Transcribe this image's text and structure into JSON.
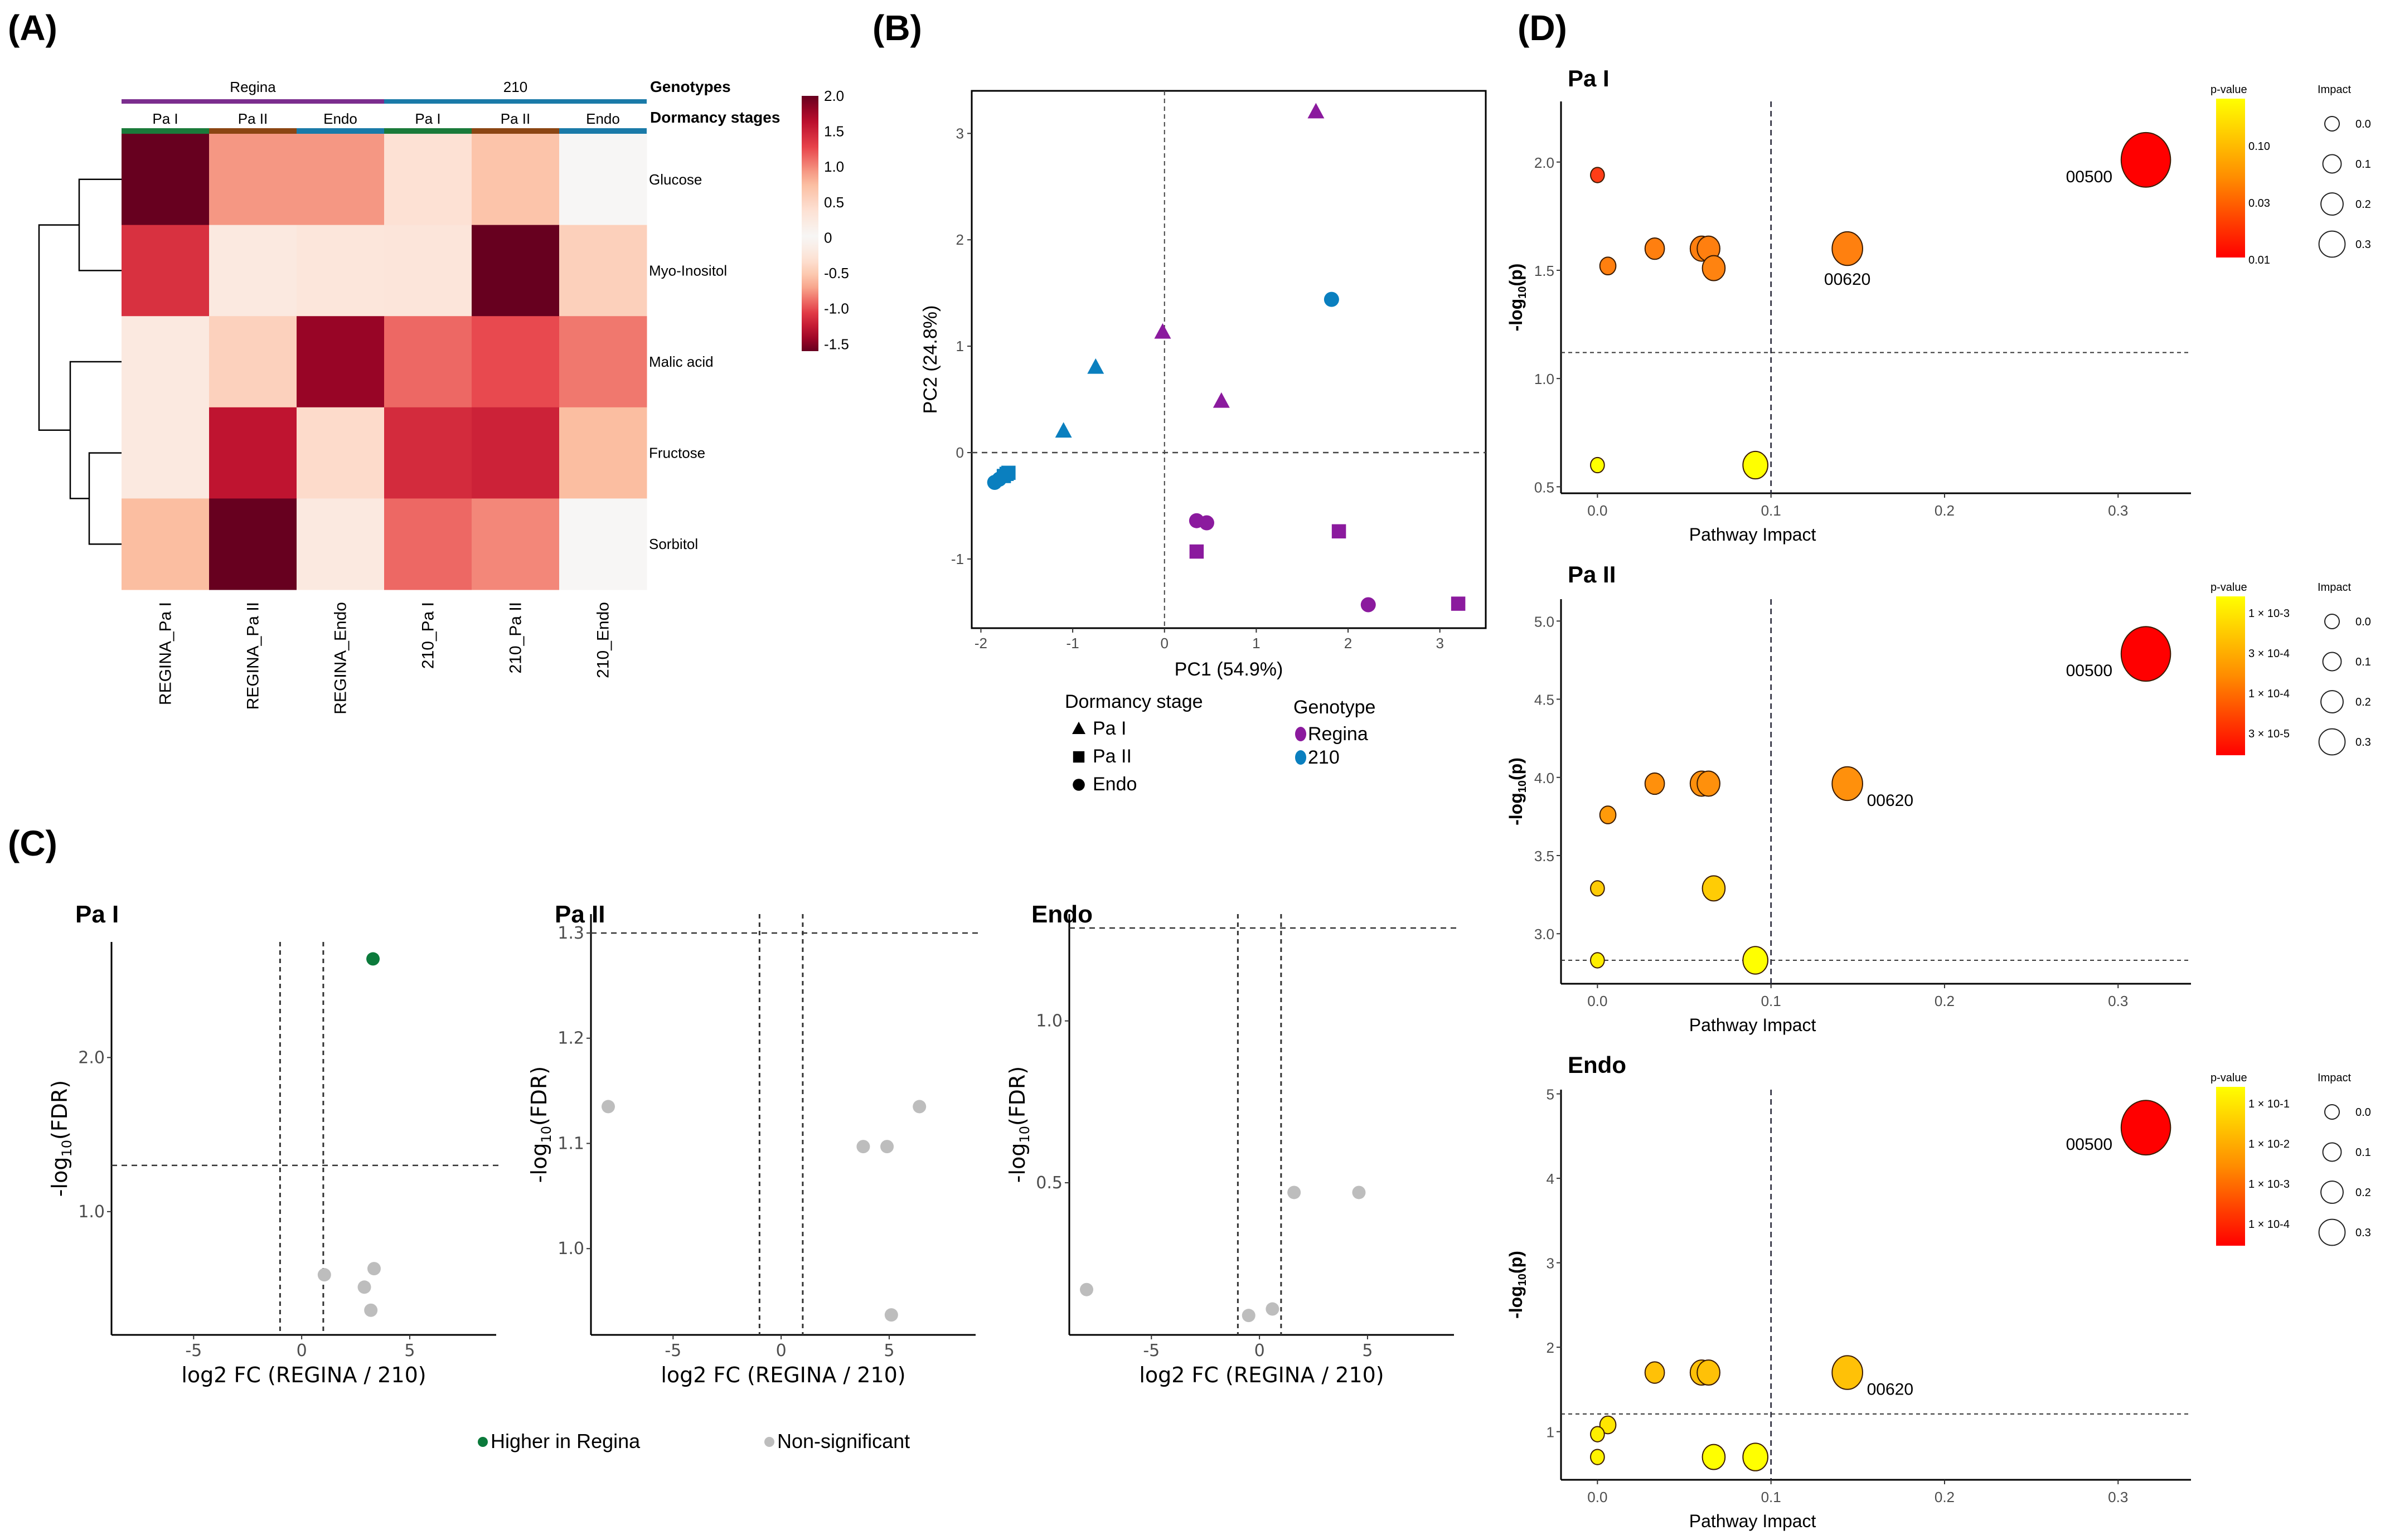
{
  "figure": {
    "panel_labels": [
      "(A)",
      "(B)",
      "(C)",
      "(D)"
    ]
  },
  "chart_data": [
    {
      "id": "A",
      "type": "heatmap",
      "title": "",
      "rows": [
        "Glucose",
        "Myo-Inositol",
        "Malic acid",
        "Fructose",
        "Sorbitol"
      ],
      "columns": [
        "REGINA_Pa I",
        "REGINA_Pa II",
        "REGINA_Endo",
        "210_Pa I",
        "210_Pa II",
        "210_Endo"
      ],
      "values": [
        [
          2.0,
          -0.75,
          -0.75,
          -0.3,
          -0.55,
          0.02
        ],
        [
          1.4,
          0.25,
          0.3,
          -0.25,
          -1.6,
          -0.45
        ],
        [
          -0.2,
          0.55,
          1.8,
          -0.9,
          -1.0,
          -0.85
        ],
        [
          0.25,
          1.6,
          0.45,
          -1.15,
          -1.2,
          -0.6
        ],
        [
          -0.6,
          2.0,
          -0.2,
          -0.9,
          -0.8,
          0.02
        ]
      ],
      "annotations": {
        "genotypes_label": "Genotypes",
        "dormancy_label": "Dormancy stages",
        "genotype_groups": [
          {
            "name": "Regina",
            "span": 3,
            "color": "#7b2d8e"
          },
          {
            "name": "210",
            "span": 3,
            "color": "#1a7aa8"
          }
        ],
        "stages": [
          {
            "name": "Pa I",
            "color": "#1a7a3a"
          },
          {
            "name": "Pa II",
            "color": "#8b4513"
          },
          {
            "name": "Endo",
            "color": "#1a7aa8"
          },
          {
            "name": "Pa I",
            "color": "#1a7a3a"
          },
          {
            "name": "Pa II",
            "color": "#8b4513"
          },
          {
            "name": "Endo",
            "color": "#1a7aa8"
          }
        ]
      },
      "colorbar": {
        "ticks": [
          "2.0",
          "1.5",
          "1.0",
          "0.5",
          "0",
          "-0.5",
          "-1.0",
          "-1.5"
        ],
        "range": [
          -1.6,
          2.0
        ],
        "low_color": "#08306b",
        "mid_color": "#f7f7f7",
        "high_color": "#67001f"
      }
    },
    {
      "id": "B",
      "type": "scatter",
      "title": "",
      "xlabel": "PC1 (54.9%)",
      "ylabel": "PC2 (24.8%)",
      "xlim": [
        -2.1,
        3.5
      ],
      "ylim": [
        -1.65,
        3.4
      ],
      "xticks": [
        -2,
        -1,
        0,
        1,
        2,
        3
      ],
      "yticks": [
        -1,
        0,
        1,
        2,
        3
      ],
      "reference_lines": {
        "x": 0,
        "y": 0
      },
      "points": [
        {
          "x": 1.65,
          "y": 3.2,
          "stage": "Pa I",
          "genotype": "Regina"
        },
        {
          "x": -0.02,
          "y": 1.13,
          "stage": "Pa I",
          "genotype": "Regina"
        },
        {
          "x": 0.62,
          "y": 0.48,
          "stage": "Pa I",
          "genotype": "Regina"
        },
        {
          "x": -0.75,
          "y": 0.8,
          "stage": "Pa I",
          "genotype": "210"
        },
        {
          "x": -1.1,
          "y": 0.2,
          "stage": "Pa I",
          "genotype": "210"
        },
        {
          "x": 1.9,
          "y": -0.74,
          "stage": "Pa II",
          "genotype": "Regina"
        },
        {
          "x": 0.35,
          "y": -0.93,
          "stage": "Pa II",
          "genotype": "Regina"
        },
        {
          "x": 3.2,
          "y": -1.42,
          "stage": "Pa II",
          "genotype": "Regina"
        },
        {
          "x": -1.72,
          "y": -0.2,
          "stage": "Pa II",
          "genotype": "210"
        },
        {
          "x": -1.75,
          "y": -0.22,
          "stage": "Pa II",
          "genotype": "210"
        },
        {
          "x": -1.7,
          "y": -0.19,
          "stage": "Pa II",
          "genotype": "210"
        },
        {
          "x": 0.35,
          "y": -0.64,
          "stage": "Endo",
          "genotype": "Regina"
        },
        {
          "x": 0.46,
          "y": -0.66,
          "stage": "Endo",
          "genotype": "Regina"
        },
        {
          "x": 2.22,
          "y": -1.43,
          "stage": "Endo",
          "genotype": "Regina"
        },
        {
          "x": 1.82,
          "y": 1.44,
          "stage": "Endo",
          "genotype": "210"
        },
        {
          "x": -1.85,
          "y": -0.28,
          "stage": "Endo",
          "genotype": "210"
        },
        {
          "x": -1.8,
          "y": -0.25,
          "stage": "Endo",
          "genotype": "210"
        }
      ],
      "legend": {
        "shape_title": "Dormancy stage",
        "shapes": [
          {
            "label": "Pa I",
            "shape": "triangle"
          },
          {
            "label": "Pa II",
            "shape": "square"
          },
          {
            "label": "Endo",
            "shape": "circle"
          }
        ],
        "color_title": "Genotype",
        "colors": [
          {
            "label": "Regina",
            "color": "#8b1a9e"
          },
          {
            "label": "210",
            "color": "#0a7fbf"
          }
        ],
        "position": "bottom"
      }
    },
    {
      "id": "C1",
      "type": "scatter",
      "title": "Pa I",
      "xlabel": "log2 FC (REGINA / 210)",
      "ylabel": "-log10(FDR)",
      "xlim": [
        -8.8,
        9
      ],
      "ylim": [
        0.2,
        2.75
      ],
      "xticks": [
        -5,
        0,
        5
      ],
      "yticks": [
        1.0,
        2.0
      ],
      "ytick_labels": [
        "1.0",
        "2.0"
      ],
      "threshold_lines": {
        "x": [
          -1,
          1
        ],
        "y": 1.3
      },
      "points": [
        {
          "x": 3.3,
          "y": 2.64,
          "class": "Higher in Regina"
        },
        {
          "x": 1.05,
          "y": 0.59,
          "class": "Non-significant"
        },
        {
          "x": 3.35,
          "y": 0.63,
          "class": "Non-significant"
        },
        {
          "x": 2.9,
          "y": 0.51,
          "class": "Non-significant"
        },
        {
          "x": 3.2,
          "y": 0.36,
          "class": "Non-significant"
        }
      ]
    },
    {
      "id": "C2",
      "type": "scatter",
      "title": "Pa II",
      "xlabel": "log2 FC (REGINA / 210)",
      "ylabel": "-log10(FDR)",
      "xlim": [
        -8.8,
        9
      ],
      "ylim": [
        0.918,
        1.318
      ],
      "xticks": [
        -5,
        0,
        5
      ],
      "yticks": [
        1.0,
        1.1,
        1.2,
        1.3
      ],
      "ytick_labels": [
        "1.0",
        "1.1",
        "1.2",
        "1.3"
      ],
      "threshold_lines": {
        "x": [
          -1,
          1
        ],
        "y": 1.3
      },
      "points": [
        {
          "x": -8.0,
          "y": 1.135,
          "class": "Non-significant"
        },
        {
          "x": 3.8,
          "y": 1.097,
          "class": "Non-significant"
        },
        {
          "x": 4.9,
          "y": 1.097,
          "class": "Non-significant"
        },
        {
          "x": 6.4,
          "y": 1.135,
          "class": "Non-significant"
        },
        {
          "x": 5.1,
          "y": 0.937,
          "class": "Non-significant"
        }
      ]
    },
    {
      "id": "C3",
      "type": "scatter",
      "title": "Endo",
      "xlabel": "log2 FC (REGINA / 210)",
      "ylabel": "-log10(FDR)",
      "xlim": [
        -8.8,
        9
      ],
      "ylim": [
        0.03,
        1.33
      ],
      "xticks": [
        -5,
        0,
        5
      ],
      "yticks": [
        0.5,
        1.0
      ],
      "ytick_labels": [
        "0.5",
        "1.0"
      ],
      "threshold_lines": {
        "x": [
          -1,
          1
        ],
        "y": 1.3
      },
      "points": [
        {
          "x": -8.0,
          "y": 0.17,
          "class": "Non-significant"
        },
        {
          "x": -0.5,
          "y": 0.09,
          "class": "Non-significant"
        },
        {
          "x": 0.6,
          "y": 0.11,
          "class": "Non-significant"
        },
        {
          "x": 1.6,
          "y": 0.47,
          "class": "Non-significant"
        },
        {
          "x": 4.6,
          "y": 0.47,
          "class": "Non-significant"
        }
      ]
    },
    {
      "id": "C-legend",
      "type": "legend",
      "entries": [
        {
          "label": "Higher in Regina",
          "color": "#0b7a3b"
        },
        {
          "label": "Non-significant",
          "color": "#bdbdbd"
        }
      ],
      "position": "bottom"
    },
    {
      "id": "D1",
      "type": "scatter",
      "title": "Pa I",
      "xlabel": "Pathway Impact",
      "ylabel": "-log10(p)",
      "xlim": [
        -0.021,
        0.342
      ],
      "ylim": [
        0.47,
        2.28
      ],
      "xticks": [
        0.0,
        0.1,
        0.2,
        0.3
      ],
      "xtick_labels": [
        "0.0",
        "0.1",
        "0.2",
        "0.3"
      ],
      "yticks": [
        0.5,
        1.0,
        1.5,
        2.0
      ],
      "ytick_labels": [
        "0.5",
        "1.0",
        "1.5",
        "2.0"
      ],
      "threshold_lines": {
        "x": 0.1,
        "y": 1.12
      },
      "points": [
        {
          "x": 0.0,
          "y": 1.94,
          "impact": 0.0,
          "color": "#ff3d17"
        },
        {
          "x": 0.006,
          "y": 1.52,
          "impact": 0.02,
          "color": "#ff7f0f"
        },
        {
          "x": 0.033,
          "y": 1.6,
          "impact": 0.05,
          "color": "#ff7f0f"
        },
        {
          "x": 0.06,
          "y": 1.6,
          "impact": 0.08,
          "color": "#ff7f0f"
        },
        {
          "x": 0.064,
          "y": 1.6,
          "impact": 0.08,
          "color": "#ff7f0f"
        },
        {
          "x": 0.067,
          "y": 1.51,
          "impact": 0.08,
          "color": "#ff8310"
        },
        {
          "x": 0.144,
          "y": 1.6,
          "impact": 0.15,
          "color": "#ff800f"
        },
        {
          "x": 0.316,
          "y": 2.01,
          "impact": 0.32,
          "color": "#ff0000",
          "label": "00500"
        },
        {
          "x": 0.0,
          "y": 0.6,
          "impact": 0.0,
          "color": "#ffff00"
        },
        {
          "x": 0.091,
          "y": 0.6,
          "impact": 0.1,
          "color": "#ffff00"
        }
      ],
      "annotations": [
        {
          "text": "00500",
          "near": "0.316"
        },
        {
          "text": "00620",
          "near": "0.144"
        }
      ],
      "colorbar": {
        "title": "p-value",
        "ticks": [
          "0.10",
          "0.03",
          "0.01"
        ]
      },
      "size_legend": {
        "title": "Impact",
        "ticks": [
          "0.0",
          "0.1",
          "0.2",
          "0.3"
        ]
      }
    },
    {
      "id": "D2",
      "type": "scatter",
      "title": "Pa II",
      "xlabel": "Pathway Impact",
      "ylabel": "-log10(p)",
      "xlim": [
        -0.021,
        0.342
      ],
      "ylim": [
        2.68,
        5.14
      ],
      "xticks": [
        0.0,
        0.1,
        0.2,
        0.3
      ],
      "xtick_labels": [
        "0.0",
        "0.1",
        "0.2",
        "0.3"
      ],
      "yticks": [
        3.0,
        3.5,
        4.0,
        4.5,
        5.0
      ],
      "ytick_labels": [
        "3.0",
        "3.5",
        "4.0",
        "4.5",
        "5.0"
      ],
      "threshold_lines": {
        "x": 0.1,
        "y": 2.83
      },
      "points": [
        {
          "x": 0.006,
          "y": 3.76,
          "impact": 0.02,
          "color": "#ff9a0a"
        },
        {
          "x": 0.033,
          "y": 3.96,
          "impact": 0.05,
          "color": "#ff900c"
        },
        {
          "x": 0.06,
          "y": 3.96,
          "impact": 0.08,
          "color": "#ff900c"
        },
        {
          "x": 0.064,
          "y": 3.96,
          "impact": 0.08,
          "color": "#ff900c"
        },
        {
          "x": 0.144,
          "y": 3.96,
          "impact": 0.15,
          "color": "#ff900c",
          "label": "00620"
        },
        {
          "x": 0.316,
          "y": 4.79,
          "impact": 0.32,
          "color": "#ff0000",
          "label": "00500"
        },
        {
          "x": 0.0,
          "y": 3.29,
          "impact": 0.0,
          "color": "#ffcc05"
        },
        {
          "x": 0.067,
          "y": 3.29,
          "impact": 0.08,
          "color": "#ffcc05"
        },
        {
          "x": 0.0,
          "y": 2.83,
          "impact": 0.0,
          "color": "#ffee00"
        },
        {
          "x": 0.091,
          "y": 2.83,
          "impact": 0.1,
          "color": "#ffff00"
        }
      ],
      "annotations": [
        {
          "text": "00500",
          "near": "0.316"
        },
        {
          "text": "00620",
          "near": "0.144"
        }
      ],
      "colorbar": {
        "title": "p-value",
        "ticks": [
          "1 × 10^-3",
          "3 × 10^-4",
          "1 × 10^-4",
          "3 × 10^-5"
        ]
      },
      "size_legend": {
        "title": "Impact",
        "ticks": [
          "0.0",
          "0.1",
          "0.2",
          "0.3"
        ]
      }
    },
    {
      "id": "D3",
      "type": "scatter",
      "title": "Endo",
      "xlabel": "Pathway Impact",
      "ylabel": "-log10(p)",
      "xlim": [
        -0.021,
        0.342
      ],
      "ylim": [
        0.43,
        5.05
      ],
      "xticks": [
        0.0,
        0.1,
        0.2,
        0.3
      ],
      "xtick_labels": [
        "0.0",
        "0.1",
        "0.2",
        "0.3"
      ],
      "yticks": [
        1,
        2,
        3,
        4,
        5
      ],
      "ytick_labels": [
        "1",
        "2",
        "3",
        "4",
        "5"
      ],
      "threshold_lines": {
        "x": 0.1,
        "y": 1.21
      },
      "points": [
        {
          "x": 0.033,
          "y": 1.7,
          "impact": 0.05,
          "color": "#ffc107"
        },
        {
          "x": 0.06,
          "y": 1.7,
          "impact": 0.08,
          "color": "#ffc107"
        },
        {
          "x": 0.064,
          "y": 1.7,
          "impact": 0.08,
          "color": "#ffc107"
        },
        {
          "x": 0.144,
          "y": 1.7,
          "impact": 0.15,
          "color": "#ffc107",
          "label": "00620"
        },
        {
          "x": 0.316,
          "y": 4.6,
          "impact": 0.32,
          "color": "#ff0000",
          "label": "00500"
        },
        {
          "x": 0.006,
          "y": 1.08,
          "impact": 0.02,
          "color": "#ffe600"
        },
        {
          "x": 0.0,
          "y": 0.97,
          "impact": 0.0,
          "color": "#ffee00"
        },
        {
          "x": 0.0,
          "y": 0.7,
          "impact": 0.0,
          "color": "#fff200"
        },
        {
          "x": 0.067,
          "y": 0.7,
          "impact": 0.08,
          "color": "#ffff00"
        },
        {
          "x": 0.091,
          "y": 0.7,
          "impact": 0.1,
          "color": "#ffff00"
        }
      ],
      "annotations": [
        {
          "text": "00500",
          "near": "0.316"
        },
        {
          "text": "00620",
          "near": "0.144"
        }
      ],
      "colorbar": {
        "title": "p-value",
        "ticks": [
          "1 × 10^-1",
          "1 × 10^-2",
          "1 × 10^-3",
          "1 × 10^-4"
        ]
      },
      "size_legend": {
        "title": "Impact",
        "ticks": [
          "0.0",
          "0.1",
          "0.2",
          "0.3"
        ]
      }
    }
  ]
}
